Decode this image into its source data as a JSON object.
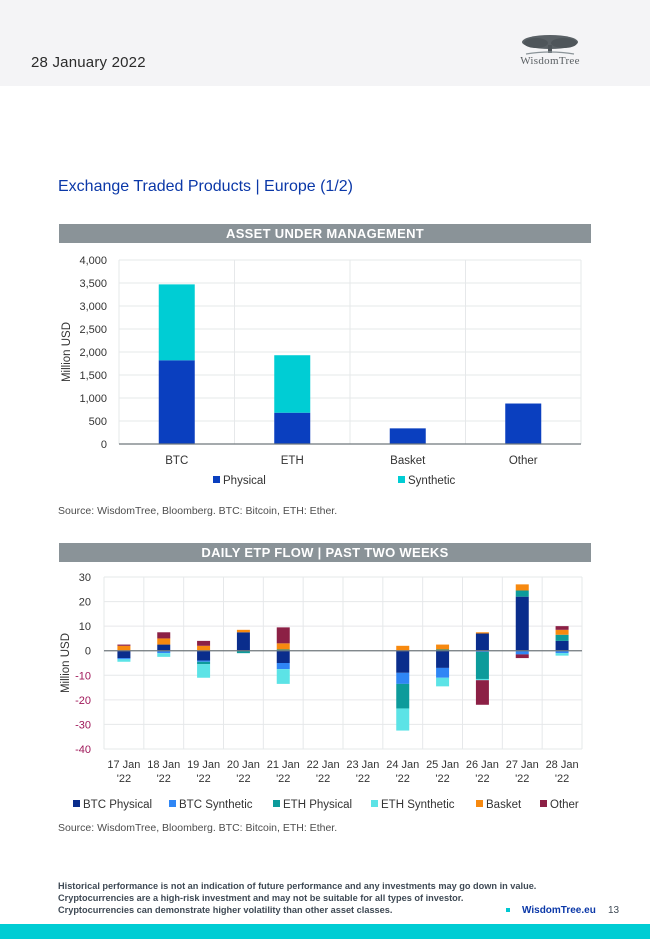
{
  "header": {
    "date": "28 January 2022",
    "logo_text": "WisdomTree",
    "logo_icon": "tree-icon"
  },
  "page_title": "Exchange Traded Products | Europe (1/2)",
  "sections": {
    "aum_title": "ASSET UNDER MANAGEMENT",
    "flow_title": "DAILY ETP FLOW | PAST TWO WEEKS"
  },
  "sources": {
    "aum": "Source: WisdomTree, Bloomberg. BTC: Bitcoin, ETH: Ether.",
    "flow": "Source: WisdomTree, Bloomberg. BTC: Bitcoin, ETH: Ether."
  },
  "footer": {
    "disclaimer": [
      "Historical performance is not an indication of future performance and any investments may go down in value.",
      "Cryptocurrencies are a high-risk investment and may not be suitable for all types of investor.",
      "Cryptocurrencies can demonstrate higher volatility than other asset classes."
    ],
    "link": "WisdomTree.eu",
    "page_number": "13"
  },
  "chart_data": [
    {
      "type": "bar",
      "stacked": true,
      "title": "ASSET UNDER MANAGEMENT",
      "xlabel": "",
      "ylabel": "Million USD",
      "ylim": [
        0,
        4000
      ],
      "yticks": [
        0,
        500,
        1000,
        1500,
        2000,
        2500,
        3000,
        3500,
        4000
      ],
      "ytick_labels": [
        "0",
        "500",
        "1,000",
        "1,500",
        "2,000",
        "2,500",
        "3,000",
        "3,500",
        "4,000"
      ],
      "grid": true,
      "legend_position": "bottom",
      "categories": [
        "BTC",
        "ETH",
        "Basket",
        "Other"
      ],
      "series": [
        {
          "name": "Physical",
          "color": "#0a3fbf",
          "values": [
            1820,
            680,
            340,
            880
          ]
        },
        {
          "name": "Synthetic",
          "color": "#00cdd4",
          "values": [
            1650,
            1250,
            0,
            0
          ]
        }
      ]
    },
    {
      "type": "bar",
      "stacked": true,
      "title": "DAILY ETP FLOW | PAST TWO WEEKS",
      "xlabel": "",
      "ylabel": "Million USD",
      "ylim": [
        -40,
        30
      ],
      "yticks": [
        -40,
        -30,
        -20,
        -10,
        0,
        10,
        20,
        30
      ],
      "ytick_labels": [
        "-40",
        "-30",
        "-20",
        "-10",
        "0",
        "10",
        "20",
        "30"
      ],
      "negative_tick_color": "#a0185a",
      "grid": true,
      "legend_position": "bottom",
      "categories": [
        "17 Jan '22",
        "18 Jan '22",
        "19 Jan '22",
        "20 Jan '22",
        "21 Jan '22",
        "22 Jan '22",
        "23 Jan '22",
        "24 Jan '22",
        "25 Jan '22",
        "26 Jan '22",
        "27 Jan '22",
        "28 Jan '22"
      ],
      "category_lines": [
        [
          "17 Jan",
          "'22"
        ],
        [
          "18 Jan",
          "'22"
        ],
        [
          "19 Jan",
          "'22"
        ],
        [
          "20 Jan",
          "'22"
        ],
        [
          "21 Jan",
          "'22"
        ],
        [
          "22 Jan",
          "'22"
        ],
        [
          "23 Jan",
          "'22"
        ],
        [
          "24 Jan",
          "'22"
        ],
        [
          "25 Jan",
          "'22"
        ],
        [
          "26 Jan",
          "'22"
        ],
        [
          "27 Jan",
          "'22"
        ],
        [
          "28 Jan",
          "'22"
        ]
      ],
      "series": [
        {
          "name": "BTC Physical",
          "color": "#0a2d8c",
          "values": [
            -3,
            2.5,
            -4,
            7.5,
            -5,
            0,
            0,
            -9,
            -7,
            7,
            22,
            4
          ]
        },
        {
          "name": "BTC Synthetic",
          "color": "#2f86f5",
          "values": [
            -0.5,
            -1,
            -0.5,
            0,
            -2.5,
            0,
            0,
            -4.5,
            -4,
            -0.5,
            -1.5,
            -1
          ]
        },
        {
          "name": "ETH Physical",
          "color": "#0d9b9b",
          "values": [
            0,
            0,
            -1,
            -1,
            0.5,
            0,
            0,
            -10,
            0.5,
            -11,
            2.5,
            2.5
          ]
        },
        {
          "name": "ETH Synthetic",
          "color": "#5ce3e6",
          "values": [
            -1,
            -1.5,
            -5.5,
            0,
            -6,
            0,
            0,
            -9,
            -3.5,
            -0.5,
            0,
            -1
          ]
        },
        {
          "name": "Basket",
          "color": "#f7890f",
          "values": [
            2,
            2.5,
            2,
            1,
            2.5,
            0,
            0,
            2,
            2,
            0.5,
            2.5,
            2
          ]
        },
        {
          "name": "Other",
          "color": "#8c2045",
          "values": [
            0.5,
            2.5,
            2,
            0,
            6.5,
            0,
            0,
            0,
            0,
            -10,
            -1.5,
            1.5
          ]
        }
      ]
    }
  ]
}
